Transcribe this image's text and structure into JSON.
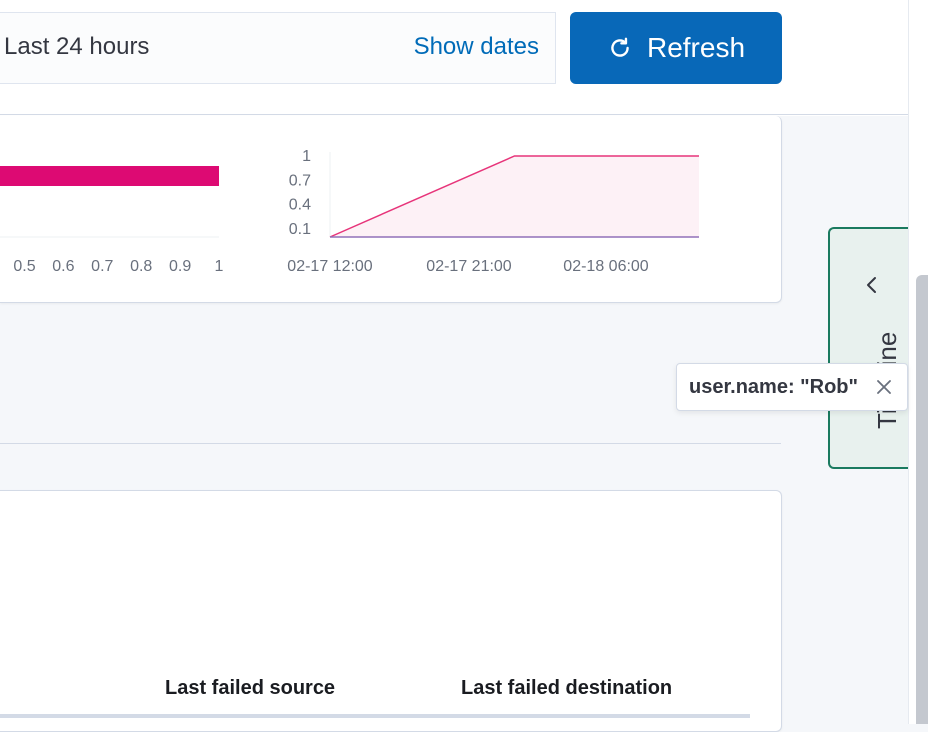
{
  "date_picker": {
    "range_label": "Last 24 hours",
    "show_dates_label": "Show dates"
  },
  "refresh_button": {
    "label": "Refresh"
  },
  "chart_data": [
    {
      "type": "bar",
      "x_ticks": [
        "0.5",
        "0.6",
        "0.7",
        "0.8",
        "0.9",
        "1"
      ],
      "series": [
        {
          "values": [
            1
          ],
          "color": "#dd0a73"
        }
      ],
      "xlim": [
        0,
        1
      ]
    },
    {
      "type": "area",
      "x_ticks": [
        "02-17 12:00",
        "02-17 21:00",
        "02-18 06:00"
      ],
      "y_ticks": [
        "1",
        "0.7",
        "0.4",
        "0.1"
      ],
      "ylim": [
        0,
        1
      ],
      "series": [
        {
          "color": "#e7347a",
          "points": [
            [
              0,
              0
            ],
            [
              0.5,
              1
            ],
            [
              1,
              1
            ]
          ]
        },
        {
          "color": "#9170b8",
          "points": [
            [
              0,
              0
            ],
            [
              1,
              0
            ]
          ]
        }
      ]
    }
  ],
  "table": {
    "columns": [
      "Last failed source",
      "Last failed destination"
    ]
  },
  "timeline_tab": {
    "label": "Timeline"
  },
  "filter_pill": {
    "text": "user.name: \"Rob\""
  }
}
